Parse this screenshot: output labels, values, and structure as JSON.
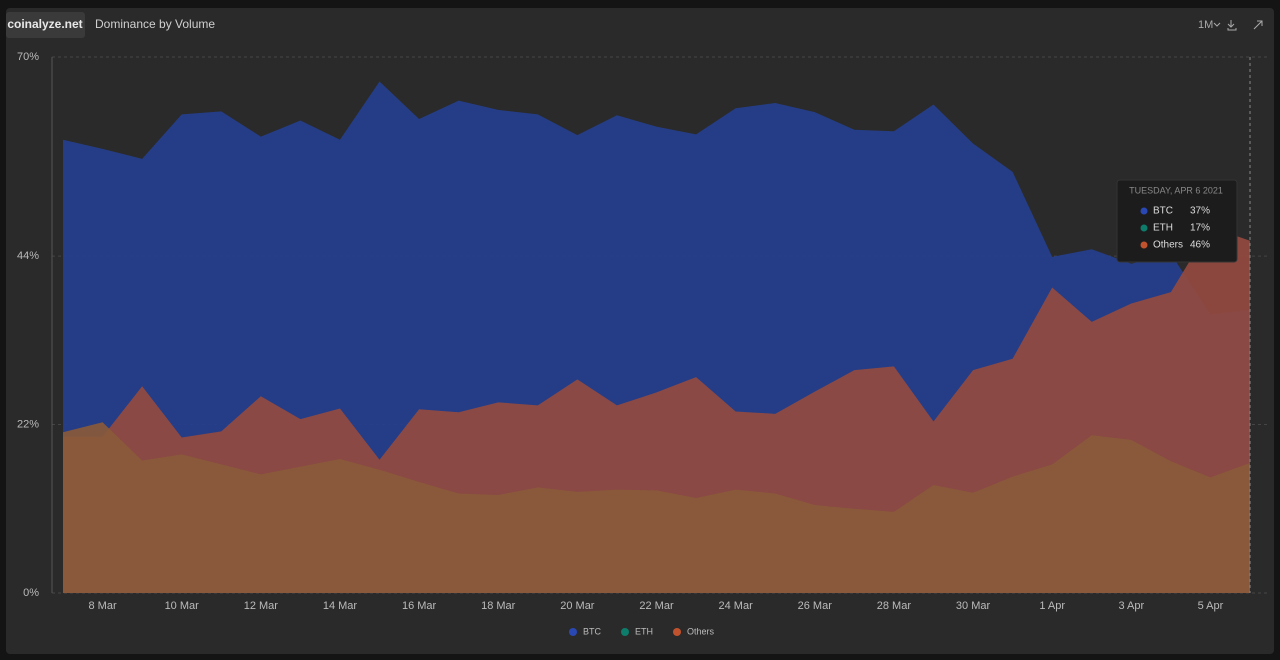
{
  "header": {
    "logo": "coinalyze.net",
    "title": "Dominance by Volume",
    "interval": "1M"
  },
  "chart_data": {
    "type": "area",
    "categories": [
      null,
      "8 Mar",
      null,
      "10 Mar",
      null,
      "12 Mar",
      null,
      "14 Mar",
      null,
      "16 Mar",
      null,
      "18 Mar",
      null,
      "20 Mar",
      null,
      "22 Mar",
      null,
      "24 Mar",
      null,
      "26 Mar",
      null,
      "28 Mar",
      null,
      "30 Mar",
      null,
      "1 Apr",
      null,
      "3 Apr",
      null,
      "5 Apr",
      null
    ],
    "series": [
      {
        "name": "BTC",
        "color": "#2a48b4",
        "fill": "#243f8e",
        "values": [
          59.2,
          58.0,
          56.7,
          62.5,
          62.9,
          59.6,
          61.7,
          59.2,
          66.8,
          61.9,
          64.3,
          63.1,
          62.5,
          59.8,
          62.4,
          60.9,
          59.9,
          63.3,
          64.0,
          62.8,
          60.5,
          60.3,
          63.8,
          58.7,
          55.0,
          43.9,
          44.9,
          43.0,
          44.3,
          36.4,
          37
        ]
      },
      {
        "name": "ETH",
        "color": "#0e7c6b",
        "fill": "#8a5a3a",
        "values": [
          21.0,
          22.3,
          17.3,
          18.1,
          16.8,
          15.5,
          16.5,
          17.5,
          16.1,
          14.5,
          13.0,
          12.8,
          13.8,
          13.2,
          13.5,
          13.4,
          12.4,
          13.5,
          13.0,
          11.5,
          11.0,
          10.6,
          14.1,
          13.1,
          15.2,
          16.8,
          20.6,
          20.0,
          17.2,
          15.1,
          17
        ]
      },
      {
        "name": "Others",
        "color": "#c0532e",
        "fill": "#944a40",
        "values": [
          20.4,
          20.4,
          27.0,
          20.3,
          21.1,
          25.7,
          22.7,
          24.1,
          17.4,
          24.0,
          23.6,
          24.9,
          24.5,
          27.9,
          24.5,
          26.2,
          28.2,
          23.7,
          23.4,
          26.3,
          29.1,
          29.6,
          22.4,
          29.1,
          30.6,
          39.9,
          35.4,
          37.8,
          39.3,
          47.8,
          46
        ]
      }
    ],
    "ylim": [
      0,
      70
    ],
    "yticks": [
      {
        "value": 0,
        "label": "0%"
      },
      {
        "value": 22,
        "label": "22%"
      },
      {
        "value": 44,
        "label": "44%"
      },
      {
        "value": 70,
        "label": "70%"
      }
    ],
    "grid": true,
    "legend": "bottom",
    "tooltip": {
      "title": "TUESDAY, APR 6 2021",
      "labels": [
        "37%",
        "17%",
        "46%"
      ]
    }
  }
}
